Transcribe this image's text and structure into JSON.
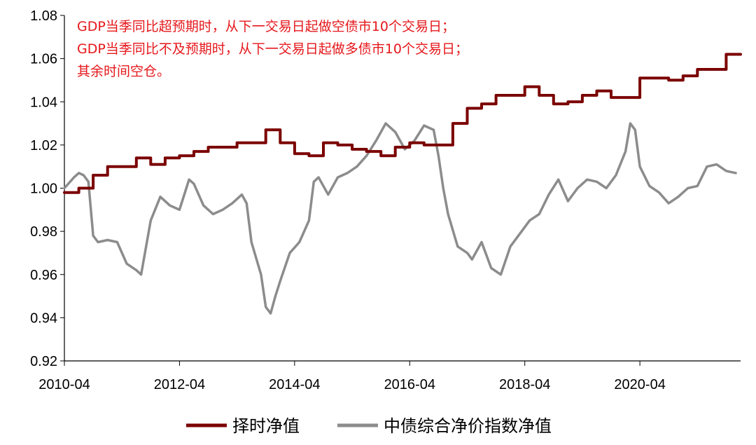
{
  "chart_data": {
    "type": "line",
    "title": "",
    "xlabel": "",
    "ylabel": "",
    "ylim": [
      0.92,
      1.08
    ],
    "yticks": [
      "0.92",
      "0.94",
      "0.96",
      "0.98",
      "1.00",
      "1.02",
      "1.04",
      "1.06",
      "1.08"
    ],
    "x_ticks": [
      "2010-04",
      "2012-04",
      "2014-04",
      "2016-04",
      "2018-04",
      "2020-04"
    ],
    "x_range": [
      "2010-04",
      "2022-01"
    ],
    "grid": false,
    "legend_position": "bottom",
    "annotations": [
      "GDP当季同比超预期时，从下一交易日起做空债市10个交易日；",
      "GDP当季同比不及预期时，从下一交易日起做多债市10个交易日；",
      "其余时间空仓。"
    ],
    "series": [
      {
        "name": "择时净值",
        "color": "#7b0000",
        "style": "step",
        "x": [
          "2010-04",
          "2010-07",
          "2010-10",
          "2011-01",
          "2011-04",
          "2011-07",
          "2011-10",
          "2012-01",
          "2012-04",
          "2012-07",
          "2012-10",
          "2013-01",
          "2013-04",
          "2013-07",
          "2013-10",
          "2014-01",
          "2014-04",
          "2014-07",
          "2014-10",
          "2015-01",
          "2015-04",
          "2015-07",
          "2015-10",
          "2016-01",
          "2016-04",
          "2016-07",
          "2016-10",
          "2017-01",
          "2017-04",
          "2017-07",
          "2017-10",
          "2018-01",
          "2018-04",
          "2018-07",
          "2018-10",
          "2019-01",
          "2019-04",
          "2019-07",
          "2019-10",
          "2020-01",
          "2020-04",
          "2020-07",
          "2020-10",
          "2021-01",
          "2021-04",
          "2021-07",
          "2021-10"
        ],
        "values": [
          0.998,
          1.0,
          1.006,
          1.01,
          1.01,
          1.014,
          1.011,
          1.014,
          1.015,
          1.017,
          1.019,
          1.019,
          1.021,
          1.021,
          1.027,
          1.021,
          1.016,
          1.015,
          1.021,
          1.02,
          1.018,
          1.017,
          1.015,
          1.019,
          1.021,
          1.02,
          1.02,
          1.03,
          1.037,
          1.039,
          1.043,
          1.043,
          1.047,
          1.043,
          1.039,
          1.04,
          1.043,
          1.045,
          1.042,
          1.042,
          1.051,
          1.051,
          1.05,
          1.052,
          1.055,
          1.055,
          1.062
        ]
      },
      {
        "name": "中债综合净价指数净值",
        "color": "#8c8c8c",
        "style": "line",
        "x": [
          "2010-04",
          "2010-06",
          "2010-07",
          "2010-08",
          "2010-09",
          "2010-10",
          "2010-11",
          "2011-01",
          "2011-03",
          "2011-05",
          "2011-07",
          "2011-08",
          "2011-10",
          "2011-12",
          "2012-02",
          "2012-04",
          "2012-06",
          "2012-07",
          "2012-09",
          "2012-11",
          "2013-01",
          "2013-03",
          "2013-05",
          "2013-06",
          "2013-07",
          "2013-09",
          "2013-10",
          "2013-11",
          "2013-12",
          "2014-01",
          "2014-03",
          "2014-05",
          "2014-07",
          "2014-08",
          "2014-09",
          "2014-11",
          "2015-01",
          "2015-03",
          "2015-05",
          "2015-07",
          "2015-09",
          "2015-11",
          "2016-01",
          "2016-03",
          "2016-05",
          "2016-07",
          "2016-09",
          "2016-10",
          "2016-11",
          "2016-12",
          "2017-02",
          "2017-04",
          "2017-05",
          "2017-07",
          "2017-09",
          "2017-11",
          "2018-01",
          "2018-03",
          "2018-05",
          "2018-07",
          "2018-09",
          "2018-11",
          "2019-01",
          "2019-03",
          "2019-05",
          "2019-07",
          "2019-09",
          "2019-11",
          "2020-01",
          "2020-02",
          "2020-03",
          "2020-04",
          "2020-06",
          "2020-08",
          "2020-10",
          "2020-12",
          "2021-02",
          "2021-04",
          "2021-06",
          "2021-08",
          "2021-10",
          "2021-12"
        ],
        "values": [
          1.0,
          1.005,
          1.007,
          1.006,
          1.003,
          0.978,
          0.975,
          0.976,
          0.975,
          0.965,
          0.962,
          0.96,
          0.985,
          0.996,
          0.992,
          0.99,
          1.004,
          1.002,
          0.992,
          0.988,
          0.99,
          0.993,
          0.997,
          0.993,
          0.975,
          0.96,
          0.945,
          0.942,
          0.95,
          0.957,
          0.97,
          0.975,
          0.985,
          1.003,
          1.005,
          0.997,
          1.005,
          1.007,
          1.01,
          1.015,
          1.022,
          1.03,
          1.026,
          1.018,
          1.022,
          1.029,
          1.027,
          1.015,
          1.0,
          0.988,
          0.973,
          0.97,
          0.967,
          0.975,
          0.963,
          0.96,
          0.973,
          0.979,
          0.985,
          0.988,
          0.997,
          1.004,
          0.994,
          1.0,
          1.004,
          1.003,
          1.0,
          1.006,
          1.017,
          1.03,
          1.027,
          1.01,
          1.001,
          0.998,
          0.993,
          0.996,
          1.0,
          1.001,
          1.01,
          1.011,
          1.008,
          1.007
        ]
      }
    ]
  }
}
